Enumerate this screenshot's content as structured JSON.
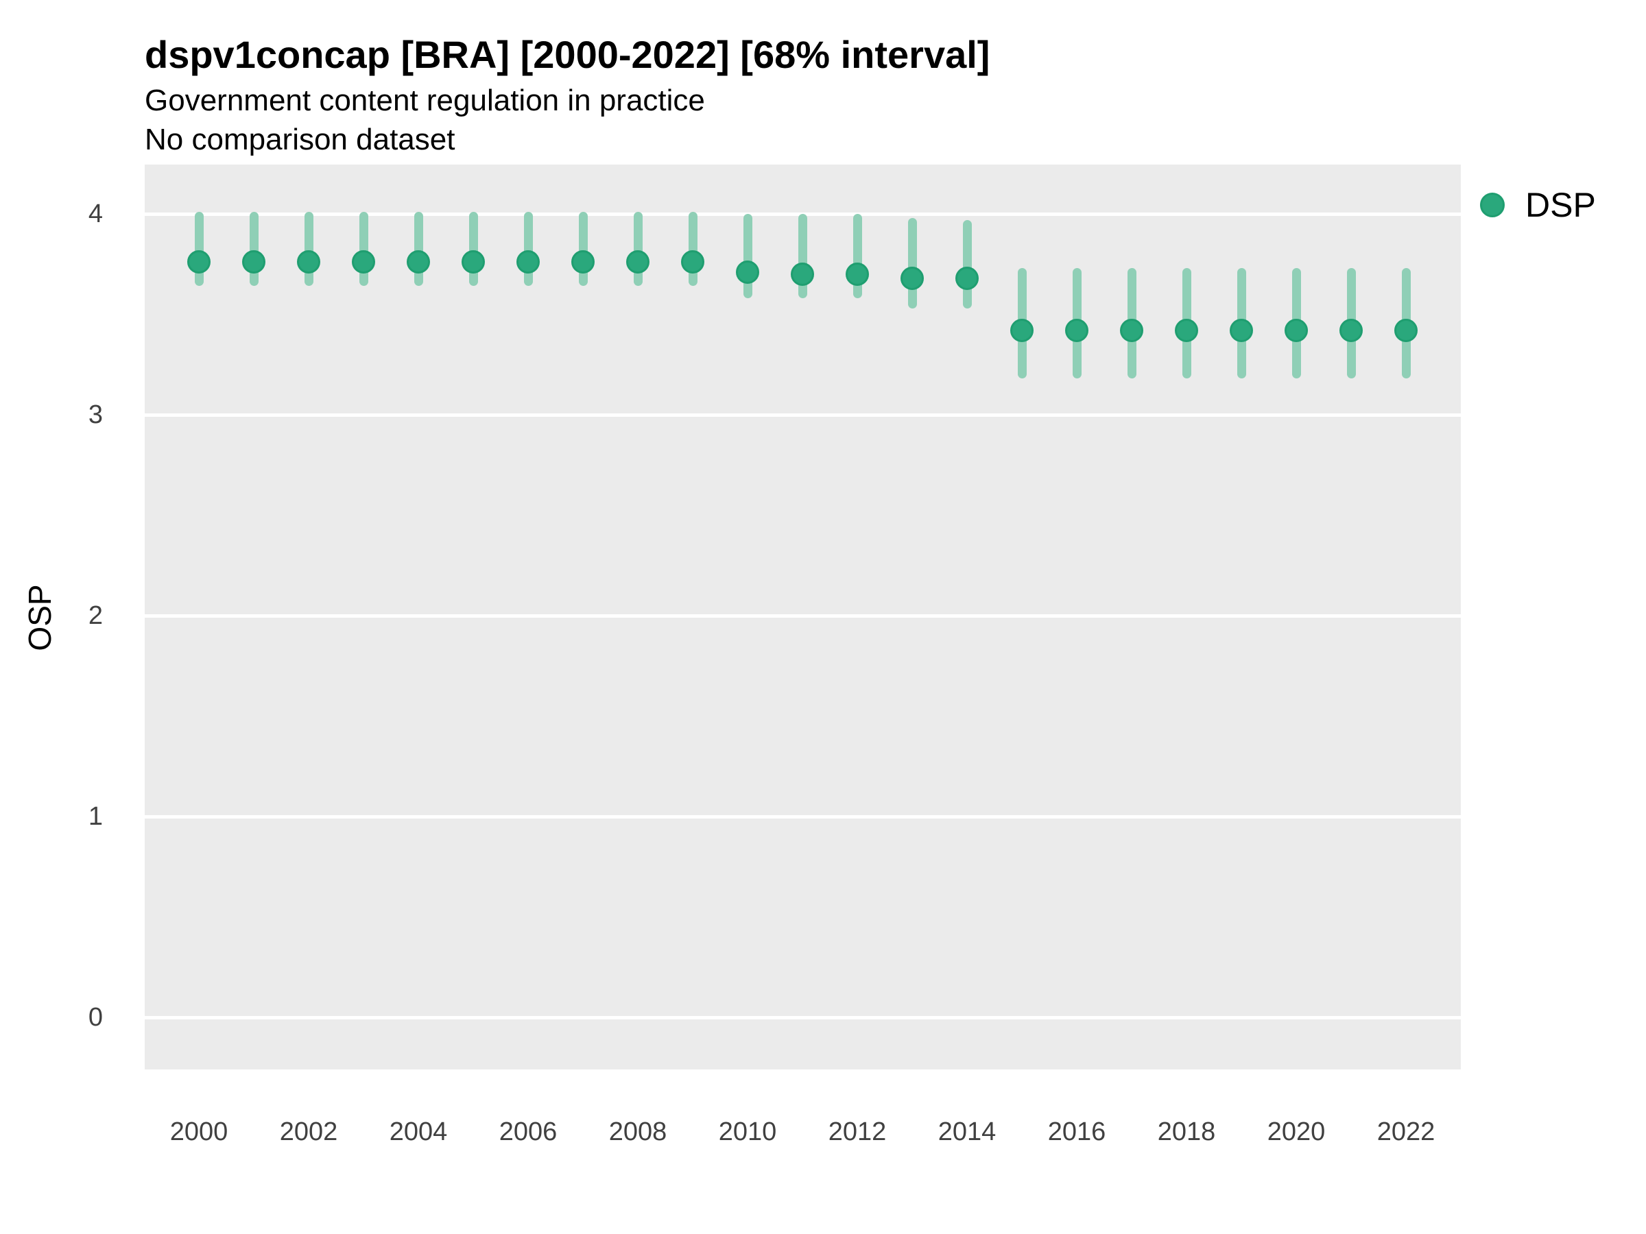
{
  "header": {
    "title": "dspv1concap [BRA] [2000-2022] [68% interval]",
    "subtitle_line1": "Government content regulation in practice",
    "subtitle_line2": "No comparison dataset"
  },
  "legend": {
    "position": "right",
    "items": [
      {
        "label": "DSP",
        "marker": "circle-icon",
        "marker_color": "#2aa87c"
      }
    ]
  },
  "colors": {
    "point_fill": "#2aa87c",
    "point_stroke": "#1f9e70",
    "interval_line": "#8fcfb6",
    "panel_background": "#ebebeb",
    "gridline": "#ffffff",
    "title_text": "#000000",
    "tick_text": "#404040"
  },
  "chart_data": {
    "type": "pointrange",
    "title": "dspv1concap [BRA] [2000-2022] [68% interval]",
    "subtitle": [
      "Government content regulation in practice",
      "No comparison dataset"
    ],
    "xlabel": "",
    "ylabel": "OSP",
    "interval_level": "68%",
    "legend_position": "right",
    "grid": "horizontal-major-only",
    "xticks": [
      2000,
      2002,
      2004,
      2006,
      2008,
      2010,
      2012,
      2014,
      2016,
      2018,
      2020,
      2022
    ],
    "yticks": [
      0,
      1,
      2,
      3,
      4
    ],
    "ylim": [
      -0.26,
      4.25
    ],
    "xlim": [
      1999,
      2023
    ],
    "series": [
      {
        "name": "DSP",
        "points": [
          {
            "year": 2000,
            "estimate": 3.76,
            "lower": 3.64,
            "upper": 4.01
          },
          {
            "year": 2001,
            "estimate": 3.76,
            "lower": 3.64,
            "upper": 4.01
          },
          {
            "year": 2002,
            "estimate": 3.76,
            "lower": 3.64,
            "upper": 4.01
          },
          {
            "year": 2003,
            "estimate": 3.76,
            "lower": 3.64,
            "upper": 4.01
          },
          {
            "year": 2004,
            "estimate": 3.76,
            "lower": 3.64,
            "upper": 4.01
          },
          {
            "year": 2005,
            "estimate": 3.76,
            "lower": 3.64,
            "upper": 4.01
          },
          {
            "year": 2006,
            "estimate": 3.76,
            "lower": 3.64,
            "upper": 4.01
          },
          {
            "year": 2007,
            "estimate": 3.76,
            "lower": 3.64,
            "upper": 4.01
          },
          {
            "year": 2008,
            "estimate": 3.76,
            "lower": 3.64,
            "upper": 4.01
          },
          {
            "year": 2009,
            "estimate": 3.76,
            "lower": 3.64,
            "upper": 4.01
          },
          {
            "year": 2010,
            "estimate": 3.71,
            "lower": 3.58,
            "upper": 4.0
          },
          {
            "year": 2011,
            "estimate": 3.7,
            "lower": 3.58,
            "upper": 4.0
          },
          {
            "year": 2012,
            "estimate": 3.7,
            "lower": 3.58,
            "upper": 4.0
          },
          {
            "year": 2013,
            "estimate": 3.68,
            "lower": 3.53,
            "upper": 3.98
          },
          {
            "year": 2014,
            "estimate": 3.68,
            "lower": 3.53,
            "upper": 3.97
          },
          {
            "year": 2015,
            "estimate": 3.42,
            "lower": 3.18,
            "upper": 3.73
          },
          {
            "year": 2016,
            "estimate": 3.42,
            "lower": 3.18,
            "upper": 3.73
          },
          {
            "year": 2017,
            "estimate": 3.42,
            "lower": 3.18,
            "upper": 3.73
          },
          {
            "year": 2018,
            "estimate": 3.42,
            "lower": 3.18,
            "upper": 3.73
          },
          {
            "year": 2019,
            "estimate": 3.42,
            "lower": 3.18,
            "upper": 3.73
          },
          {
            "year": 2020,
            "estimate": 3.42,
            "lower": 3.18,
            "upper": 3.73
          },
          {
            "year": 2021,
            "estimate": 3.42,
            "lower": 3.18,
            "upper": 3.73
          },
          {
            "year": 2022,
            "estimate": 3.42,
            "lower": 3.18,
            "upper": 3.73
          }
        ]
      }
    ]
  }
}
